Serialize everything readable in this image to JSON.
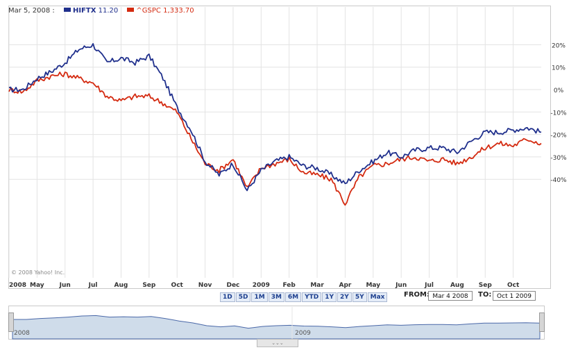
{
  "header": {
    "date": "Mar 5, 2008 :",
    "legend": [
      {
        "label": "HIFTX",
        "value": "11.20",
        "color": "#1f2f8c"
      },
      {
        "label": "^GSPC",
        "value": "1,333.70",
        "color": "#d42a10"
      }
    ]
  },
  "copyright": "© 2008 Yahoo! Inc.",
  "range_buttons": [
    "1D",
    "5D",
    "1M",
    "3M",
    "6M",
    "YTD",
    "1Y",
    "2Y",
    "5Y",
    "Max"
  ],
  "from_label": "FROM:",
  "from_value": "Mar 4 2008",
  "to_label": "TO:",
  "to_value": "Oct 1 2009",
  "navigator": {
    "labels": [
      "2008",
      "2009"
    ],
    "grip": "⌄⌄⌄"
  },
  "chart_data": {
    "type": "line",
    "ylabel": "",
    "ylim": [
      -50,
      25
    ],
    "yticks": [
      20,
      10,
      0,
      -10,
      -20,
      -30,
      -40
    ],
    "ytick_labels": [
      "20%",
      "10%",
      "0%",
      "-10%",
      "-20%",
      "-30%",
      "-40%"
    ],
    "xtick_labels": [
      "2008",
      "May",
      "Jun",
      "Jul",
      "Aug",
      "Sep",
      "Oct",
      "Nov",
      "Dec",
      "2009",
      "Feb",
      "Mar",
      "Apr",
      "May",
      "Jun",
      "Jul",
      "Aug",
      "Sep",
      "Oct"
    ],
    "grid": true,
    "x_months": [
      0,
      0.5,
      1,
      1.5,
      2,
      2.5,
      3,
      3.5,
      4,
      4.5,
      5,
      5.5,
      6,
      6.5,
      7,
      7.5,
      8,
      8.5,
      9,
      9.5,
      10,
      10.5,
      11,
      11.5,
      12,
      12.5,
      13,
      13.5,
      14,
      14.5,
      15,
      15.5,
      16,
      16.5,
      17,
      17.5,
      18,
      18.5,
      19
    ],
    "series": [
      {
        "name": "HIFTX",
        "color": "#1f2f8c",
        "values": [
          0,
          0,
          5,
          8,
          12,
          18,
          20,
          12,
          14,
          12,
          15,
          5,
          -8,
          -18,
          -32,
          -38,
          -33,
          -45,
          -36,
          -32,
          -30,
          -34,
          -35,
          -38,
          -42,
          -36,
          -32,
          -28,
          -30,
          -27,
          -26,
          -26,
          -28,
          -23,
          -19,
          -19,
          -18,
          -17,
          -19
        ]
      },
      {
        "name": "^GSPC",
        "color": "#d42a10",
        "values": [
          0,
          -1,
          4,
          6,
          7,
          5,
          3,
          -3,
          -5,
          -3,
          -3,
          -6,
          -10,
          -22,
          -33,
          -36,
          -31,
          -44,
          -35,
          -33,
          -31,
          -37,
          -38,
          -40,
          -51,
          -39,
          -34,
          -33,
          -31,
          -30,
          -32,
          -31,
          -33,
          -30,
          -26,
          -24,
          -25,
          -22,
          -24
        ]
      }
    ]
  }
}
